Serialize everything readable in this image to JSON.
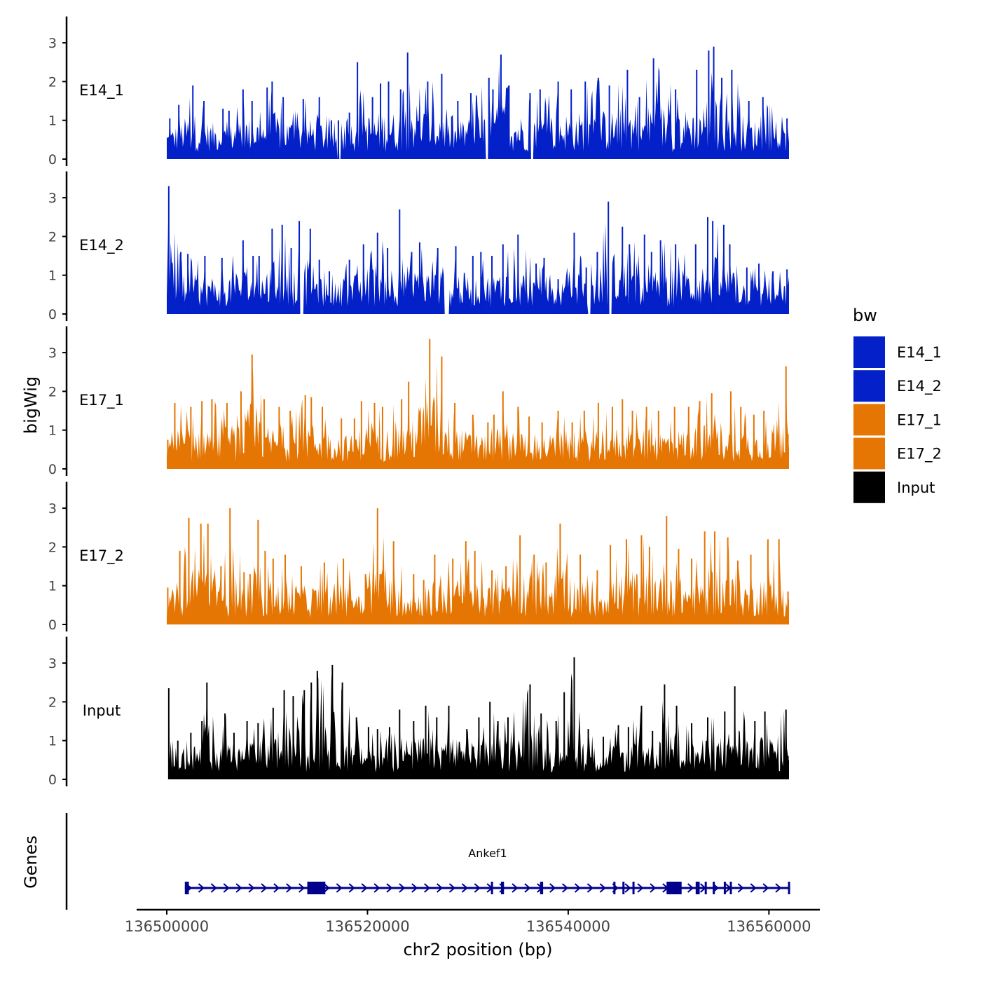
{
  "chart_data": {
    "type": "area",
    "y_axis_label": "bigWig",
    "x_axis_label": "chr2 position (bp)",
    "x_range": [
      136500000,
      136562000
    ],
    "x_ticks": [
      136500000,
      136520000,
      136540000,
      136560000
    ],
    "x_tick_labels": [
      "136500000",
      "136520000",
      "136540000",
      "136560000"
    ],
    "y_range": [
      0,
      3.5
    ],
    "y_ticks": [
      0,
      1,
      2,
      3
    ],
    "y_tick_labels": [
      "0",
      "1",
      "2",
      "3"
    ],
    "legend": {
      "title": "bw",
      "position": "right",
      "entries": [
        {
          "label": "E14_1",
          "color": "#0320C9"
        },
        {
          "label": "E14_2",
          "color": "#0320C9"
        },
        {
          "label": "E17_1",
          "color": "#E57604"
        },
        {
          "label": "E17_2",
          "color": "#E57604"
        },
        {
          "label": "Input",
          "color": "#000000"
        }
      ]
    },
    "tracks": [
      {
        "name": "E14_1",
        "color": "#0320C9",
        "x_start": 136500000,
        "x_end": 136562000,
        "peaks": [
          [
            136500300,
            1.05
          ],
          [
            136501200,
            1.4
          ],
          [
            136502600,
            1.9
          ],
          [
            136503700,
            1.5
          ],
          [
            136505600,
            1.3
          ],
          [
            136506200,
            1.25
          ],
          [
            136507600,
            1.8
          ],
          [
            136508500,
            1.5
          ],
          [
            136510000,
            1.85
          ],
          [
            136510500,
            2.0
          ],
          [
            136511600,
            1.6
          ],
          [
            136513600,
            1.55
          ],
          [
            136515200,
            1.6
          ],
          [
            136516400,
            1.0
          ],
          [
            136517100,
            1.0
          ],
          [
            136518200,
            1.2
          ],
          [
            136519000,
            2.5
          ],
          [
            136520500,
            1.6
          ],
          [
            136521300,
            1.95
          ],
          [
            136522100,
            2.0
          ],
          [
            136523300,
            1.8
          ],
          [
            136524000,
            2.75
          ],
          [
            136526000,
            2.0
          ],
          [
            136527400,
            2.2
          ],
          [
            136528400,
            1.1
          ],
          [
            136529000,
            1.5
          ],
          [
            136530300,
            1.7
          ],
          [
            136532100,
            2.1
          ],
          [
            136532500,
            1.8
          ],
          [
            136533300,
            2.7
          ],
          [
            136534100,
            1.9
          ],
          [
            136536200,
            1.7
          ],
          [
            136537200,
            1.8
          ],
          [
            136539000,
            2.0
          ],
          [
            136540300,
            1.8
          ],
          [
            136541700,
            2.0
          ],
          [
            136543000,
            2.1
          ],
          [
            136544100,
            1.9
          ],
          [
            136545900,
            2.3
          ],
          [
            136547100,
            1.6
          ],
          [
            136548500,
            2.6
          ],
          [
            136550700,
            1.8
          ],
          [
            136552800,
            2.3
          ],
          [
            136554000,
            2.8
          ],
          [
            136554500,
            2.9
          ],
          [
            136555300,
            2.1
          ],
          [
            136556300,
            2.3
          ],
          [
            136558000,
            1.5
          ],
          [
            136559400,
            1.6
          ],
          [
            136561800,
            1.05
          ]
        ],
        "gaps": [
          [
            136517000,
            136517300
          ],
          [
            136531800,
            136532100
          ],
          [
            136536200,
            136536500
          ]
        ]
      },
      {
        "name": "E14_2",
        "color": "#0320C9",
        "x_start": 136500000,
        "x_end": 136562000,
        "peaks": [
          [
            136500200,
            3.3
          ],
          [
            136501400,
            1.6
          ],
          [
            136502100,
            1.55
          ],
          [
            136503800,
            1.5
          ],
          [
            136505500,
            1.45
          ],
          [
            136507600,
            1.9
          ],
          [
            136508600,
            1.5
          ],
          [
            136509200,
            1.5
          ],
          [
            136510500,
            2.2
          ],
          [
            136511500,
            2.3
          ],
          [
            136512400,
            1.7
          ],
          [
            136513200,
            2.4
          ],
          [
            136514300,
            2.2
          ],
          [
            136515200,
            1.4
          ],
          [
            136516200,
            1.1
          ],
          [
            136518200,
            1.4
          ],
          [
            136519600,
            1.8
          ],
          [
            136521000,
            2.1
          ],
          [
            136522000,
            1.7
          ],
          [
            136523200,
            2.7
          ],
          [
            136524400,
            1.6
          ],
          [
            136525200,
            1.85
          ],
          [
            136527000,
            1.7
          ],
          [
            136528800,
            1.75
          ],
          [
            136530500,
            1.5
          ],
          [
            136531300,
            1.6
          ],
          [
            136532400,
            1.5
          ],
          [
            136533500,
            1.8
          ],
          [
            136535000,
            2.05
          ],
          [
            136536800,
            1.3
          ],
          [
            136537600,
            1.45
          ],
          [
            136539000,
            0.9
          ],
          [
            136540600,
            2.1
          ],
          [
            136541800,
            1.2
          ],
          [
            136542900,
            1.6
          ],
          [
            136544000,
            2.9
          ],
          [
            136545400,
            2.25
          ],
          [
            136546100,
            1.8
          ],
          [
            136547600,
            2.05
          ],
          [
            136548300,
            1.6
          ],
          [
            136549200,
            1.9
          ],
          [
            136550700,
            1.8
          ],
          [
            136552700,
            1.8
          ],
          [
            136553900,
            2.5
          ],
          [
            136554400,
            2.4
          ],
          [
            136555500,
            2.3
          ],
          [
            136556100,
            1.8
          ],
          [
            136557800,
            1.2
          ],
          [
            136559000,
            1.3
          ],
          [
            136560400,
            1.1
          ],
          [
            136561800,
            1.15
          ]
        ],
        "gaps": [
          [
            136513300,
            136513600
          ],
          [
            136527700,
            136528100
          ],
          [
            136542000,
            136542200
          ],
          [
            136544000,
            136544300
          ]
        ]
      },
      {
        "name": "E17_1",
        "color": "#E57604",
        "x_start": 136500000,
        "x_end": 136562000,
        "peaks": [
          [
            136500100,
            0.75
          ],
          [
            136500800,
            1.7
          ],
          [
            136502400,
            1.6
          ],
          [
            136503500,
            1.75
          ],
          [
            136504500,
            1.8
          ],
          [
            136506000,
            1.7
          ],
          [
            136507400,
            2.0
          ],
          [
            136508500,
            2.95
          ],
          [
            136509700,
            1.8
          ],
          [
            136511200,
            1.6
          ],
          [
            136512300,
            1.5
          ],
          [
            136513800,
            1.9
          ],
          [
            136514400,
            1.85
          ],
          [
            136515500,
            1.6
          ],
          [
            136517400,
            1.3
          ],
          [
            136518700,
            1.3
          ],
          [
            136519400,
            1.75
          ],
          [
            136520700,
            1.7
          ],
          [
            136521500,
            1.6
          ],
          [
            136523400,
            1.8
          ],
          [
            136524100,
            2.25
          ],
          [
            136526200,
            3.35
          ],
          [
            136527400,
            2.9
          ],
          [
            136528700,
            1.7
          ],
          [
            136530500,
            1.4
          ],
          [
            136532000,
            1.2
          ],
          [
            136532600,
            1.4
          ],
          [
            136533500,
            2.0
          ],
          [
            136535000,
            1.6
          ],
          [
            136536100,
            1.35
          ],
          [
            136537400,
            1.2
          ],
          [
            136539000,
            1.5
          ],
          [
            136540400,
            1.2
          ],
          [
            136541600,
            1.5
          ],
          [
            136543000,
            1.7
          ],
          [
            136544400,
            1.6
          ],
          [
            136545400,
            1.8
          ],
          [
            136546400,
            1.5
          ],
          [
            136547800,
            1.6
          ],
          [
            136549000,
            1.5
          ],
          [
            136550600,
            1.6
          ],
          [
            136552000,
            1.6
          ],
          [
            136553100,
            1.75
          ],
          [
            136554300,
            1.95
          ],
          [
            136556200,
            2.0
          ],
          [
            136557200,
            1.6
          ],
          [
            136558500,
            1.4
          ],
          [
            136559500,
            1.5
          ],
          [
            136561700,
            2.65
          ],
          [
            136561900,
            0.9
          ]
        ],
        "gaps": []
      },
      {
        "name": "E17_2",
        "color": "#E57604",
        "x_start": 136500000,
        "x_end": 136562000,
        "peaks": [
          [
            136500100,
            0.95
          ],
          [
            136501300,
            1.9
          ],
          [
            136502200,
            2.75
          ],
          [
            136503400,
            2.6
          ],
          [
            136504100,
            2.6
          ],
          [
            136505400,
            1.5
          ],
          [
            136506300,
            3.0
          ],
          [
            136507700,
            1.35
          ],
          [
            136508300,
            1.3
          ],
          [
            136509100,
            2.7
          ],
          [
            136509800,
            1.9
          ],
          [
            136510600,
            1.7
          ],
          [
            136511800,
            1.8
          ],
          [
            136513400,
            1.5
          ],
          [
            136515700,
            1.6
          ],
          [
            136517600,
            1.7
          ],
          [
            136519800,
            1.3
          ],
          [
            136521000,
            3.0
          ],
          [
            136522600,
            2.15
          ],
          [
            136524600,
            1.3
          ],
          [
            136525600,
            1.15
          ],
          [
            136526700,
            1.8
          ],
          [
            136528500,
            1.7
          ],
          [
            136529800,
            2.15
          ],
          [
            136530700,
            1.9
          ],
          [
            136532400,
            1.4
          ],
          [
            136533800,
            1.5
          ],
          [
            136535200,
            2.3
          ],
          [
            136536600,
            1.8
          ],
          [
            136537800,
            1.6
          ],
          [
            136539200,
            2.6
          ],
          [
            136541200,
            1.8
          ],
          [
            136542900,
            1.4
          ],
          [
            136544200,
            2.05
          ],
          [
            136545800,
            2.2
          ],
          [
            136547300,
            2.3
          ],
          [
            136548100,
            2.0
          ],
          [
            136549800,
            2.8
          ],
          [
            136551000,
            1.95
          ],
          [
            136552300,
            1.7
          ],
          [
            136553600,
            2.4
          ],
          [
            136554600,
            2.4
          ],
          [
            136555900,
            2.25
          ],
          [
            136556900,
            1.65
          ],
          [
            136558200,
            1.8
          ],
          [
            136559900,
            2.2
          ],
          [
            136561000,
            2.2
          ],
          [
            136561900,
            0.85
          ]
        ],
        "gaps": []
      },
      {
        "name": "Input",
        "color": "#000000",
        "x_start": 136500200,
        "x_end": 136562000,
        "peaks": [
          [
            136500200,
            2.35
          ],
          [
            136501100,
            1.0
          ],
          [
            136502400,
            1.2
          ],
          [
            136503500,
            1.5
          ],
          [
            136504000,
            2.5
          ],
          [
            136505800,
            1.7
          ],
          [
            136506700,
            1.2
          ],
          [
            136508000,
            1.5
          ],
          [
            136509100,
            1.45
          ],
          [
            136510600,
            1.85
          ],
          [
            136511700,
            2.3
          ],
          [
            136512600,
            2.15
          ],
          [
            136513700,
            2.3
          ],
          [
            136514400,
            2.5
          ],
          [
            136515000,
            2.8
          ],
          [
            136516500,
            2.95
          ],
          [
            136517500,
            2.5
          ],
          [
            136518900,
            1.6
          ],
          [
            136520100,
            1.35
          ],
          [
            136521000,
            1.3
          ],
          [
            136522200,
            1.35
          ],
          [
            136523200,
            1.8
          ],
          [
            136524600,
            1.5
          ],
          [
            136525800,
            1.9
          ],
          [
            136526900,
            1.6
          ],
          [
            136528100,
            1.9
          ],
          [
            136529900,
            1.3
          ],
          [
            136531100,
            1.6
          ],
          [
            136532200,
            2.0
          ],
          [
            136533000,
            1.5
          ],
          [
            136534000,
            1.6
          ],
          [
            136536200,
            2.45
          ],
          [
            136537300,
            1.7
          ],
          [
            136538800,
            1.5
          ],
          [
            136539600,
            2.25
          ],
          [
            136540600,
            3.15
          ],
          [
            136542000,
            1.3
          ],
          [
            136543500,
            1.1
          ],
          [
            136545000,
            1.4
          ],
          [
            136546000,
            1.35
          ],
          [
            136547300,
            1.9
          ],
          [
            136548400,
            1.25
          ],
          [
            136549600,
            2.45
          ],
          [
            136550800,
            1.9
          ],
          [
            136552300,
            1.45
          ],
          [
            136553900,
            1.6
          ],
          [
            136555600,
            1.75
          ],
          [
            136556600,
            2.4
          ],
          [
            136558600,
            1.5
          ],
          [
            136559600,
            1.75
          ],
          [
            136561700,
            1.8
          ],
          [
            136561900,
            0.6
          ]
        ],
        "gaps": []
      }
    ],
    "gene_track": {
      "label": "Genes",
      "gene_name": "Ankef1",
      "color": "#00008B",
      "strand": "+",
      "start": 136501800,
      "end": 136562000,
      "exons": [
        [
          136501800,
          136502200
        ],
        [
          136514000,
          136515800
        ],
        [
          136532300,
          136532500
        ],
        [
          136533300,
          136533600
        ],
        [
          136537200,
          136537500
        ],
        [
          136544500,
          136544700
        ],
        [
          136545400,
          136545600
        ],
        [
          136546400,
          136546600
        ],
        [
          136549800,
          136551300
        ],
        [
          136552700,
          136553100
        ],
        [
          136553600,
          136553800
        ],
        [
          136554400,
          136554600
        ],
        [
          136555500,
          136555700
        ],
        [
          136556100,
          136556300
        ],
        [
          136561900,
          136562000
        ]
      ]
    }
  }
}
